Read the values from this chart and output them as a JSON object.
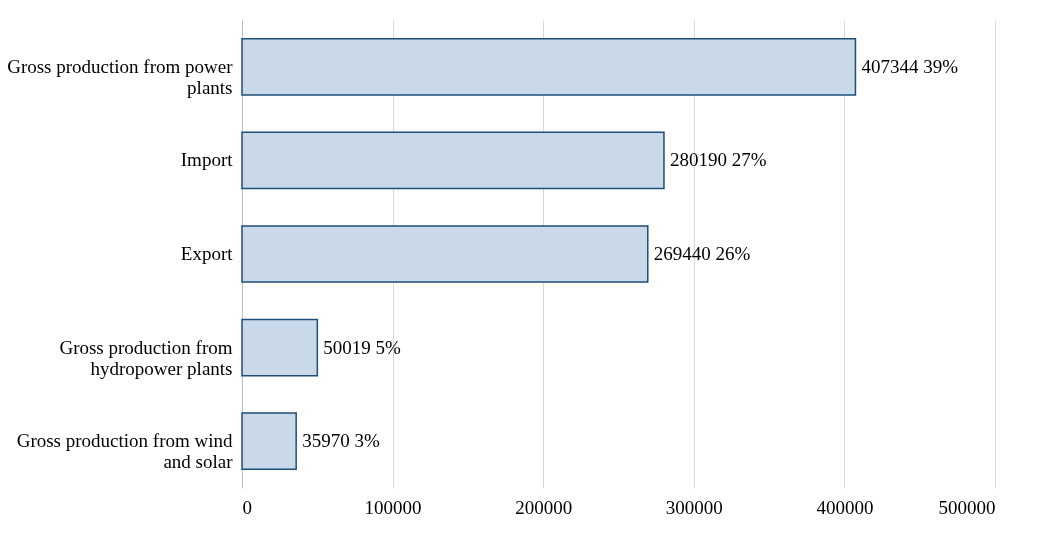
{
  "chart_data": {
    "type": "bar",
    "orientation": "horizontal",
    "categories": [
      "Gross production from power plants",
      "Import",
      "Export",
      "Gross production from hydropower plants",
      "Gross production from wind and solar"
    ],
    "values": [
      407344,
      280190,
      269440,
      50019,
      35970
    ],
    "value_labels": [
      "407344 39%",
      "280190 27%",
      "269440 26%",
      "50019 5%",
      "35970 3%"
    ],
    "color": "#c9d9ea",
    "xlim": [
      0,
      500000
    ],
    "xticks": [
      0,
      100000,
      200000,
      300000,
      400000,
      500000
    ],
    "grid": "x"
  }
}
